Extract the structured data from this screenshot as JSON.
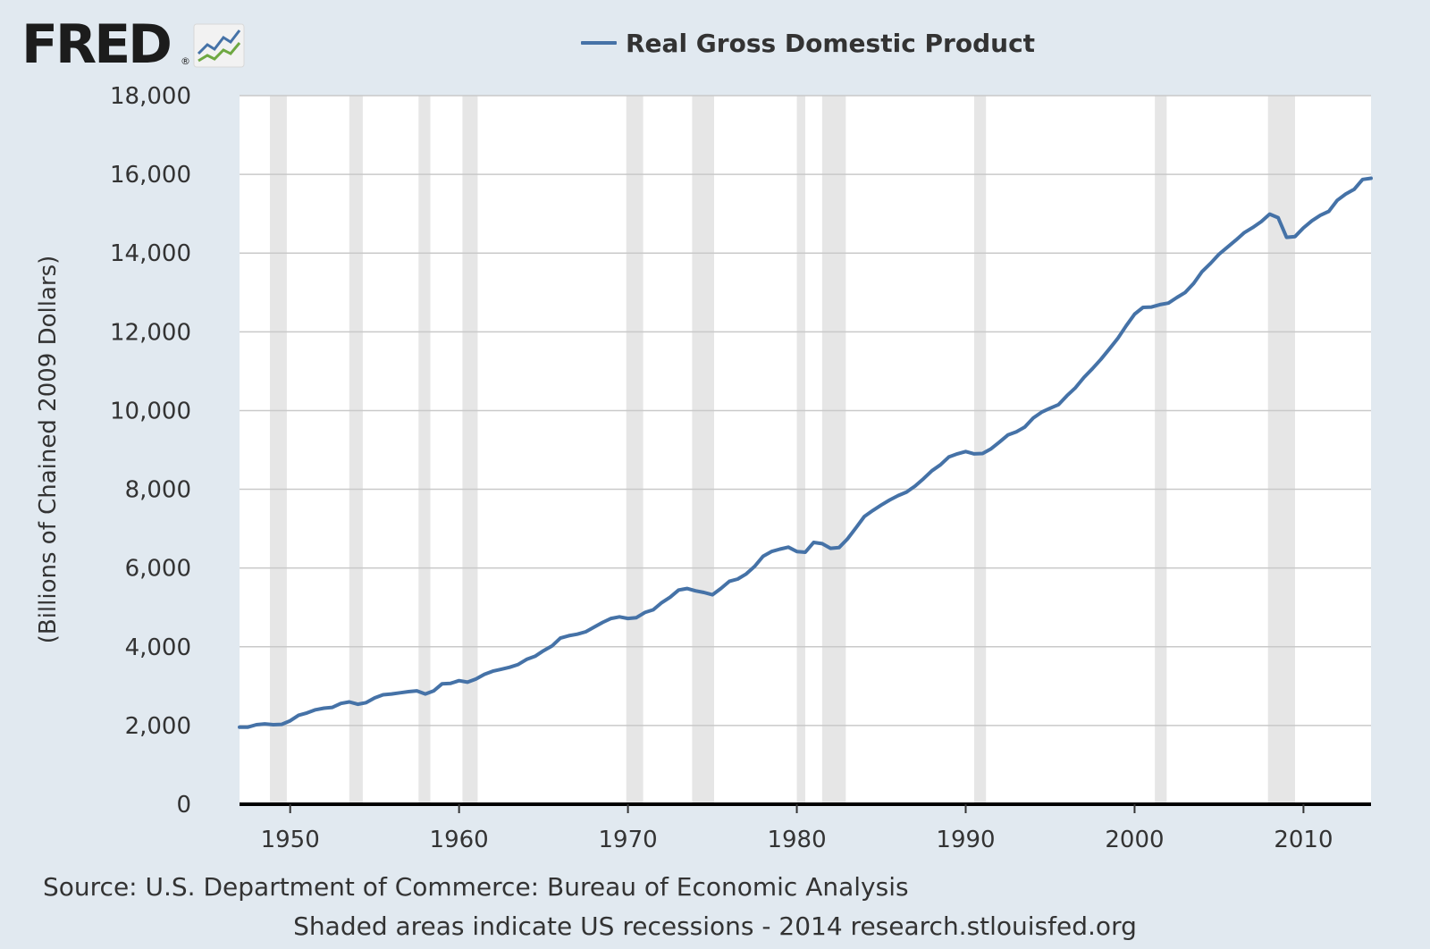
{
  "brand": {
    "name": "FRED",
    "reg": "®"
  },
  "legend": {
    "label": "Real Gross Domestic Product",
    "color": "#4572a7"
  },
  "footer": {
    "source": "Source: U.S. Department of Commerce: Bureau of Economic Analysis",
    "note": "Shaded areas indicate US recessions - 2014 research.stlouisfed.org"
  },
  "chart_data": {
    "type": "line",
    "title": "Real Gross Domestic Product",
    "xlabel": "",
    "ylabel": "(Billions of Chained 2009 Dollars)",
    "xlim": [
      1947.0,
      2014.0
    ],
    "ylim": [
      0,
      18000
    ],
    "yticks": [
      0,
      2000,
      4000,
      6000,
      8000,
      10000,
      12000,
      14000,
      16000,
      18000
    ],
    "ytick_labels": [
      "0",
      "2,000",
      "4,000",
      "6,000",
      "8,000",
      "10,000",
      "12,000",
      "14,000",
      "16,000",
      "18,000"
    ],
    "xticks": [
      1950,
      1960,
      1970,
      1980,
      1990,
      2000,
      2010
    ],
    "xtick_labels": [
      "1950",
      "1960",
      "1970",
      "1980",
      "1990",
      "2000",
      "2010"
    ],
    "grid": true,
    "legend_position": "top-center",
    "colors": {
      "line": "#4572a7",
      "recession": "#e6e6e6",
      "grid": "#c9c9c9",
      "plot_bg": "#ffffff"
    },
    "recessions": [
      [
        1948.8,
        1949.8
      ],
      [
        1953.5,
        1954.3
      ],
      [
        1957.6,
        1958.3
      ],
      [
        1960.2,
        1961.1
      ],
      [
        1969.9,
        1970.9
      ],
      [
        1973.8,
        1975.1
      ],
      [
        1980.0,
        1980.5
      ],
      [
        1981.5,
        1982.9
      ],
      [
        1990.5,
        1991.2
      ],
      [
        2001.2,
        2001.9
      ],
      [
        2007.9,
        2009.5
      ]
    ],
    "series": [
      {
        "name": "Real Gross Domestic Product",
        "x": [
          1947.0,
          1947.5,
          1948.0,
          1948.5,
          1949.0,
          1949.5,
          1950.0,
          1950.5,
          1951.0,
          1951.5,
          1952.0,
          1952.5,
          1953.0,
          1953.5,
          1954.0,
          1954.5,
          1955.0,
          1955.5,
          1956.0,
          1956.5,
          1957.0,
          1957.5,
          1958.0,
          1958.5,
          1959.0,
          1959.5,
          1960.0,
          1960.5,
          1961.0,
          1961.5,
          1962.0,
          1962.5,
          1963.0,
          1963.5,
          1964.0,
          1964.5,
          1965.0,
          1965.5,
          1966.0,
          1966.5,
          1967.0,
          1967.5,
          1968.0,
          1968.5,
          1969.0,
          1969.5,
          1970.0,
          1970.5,
          1971.0,
          1971.5,
          1972.0,
          1972.5,
          1973.0,
          1973.5,
          1974.0,
          1974.5,
          1975.0,
          1975.5,
          1976.0,
          1976.5,
          1977.0,
          1977.5,
          1978.0,
          1978.5,
          1979.0,
          1979.5,
          1980.0,
          1980.5,
          1981.0,
          1981.5,
          1982.0,
          1982.5,
          1983.0,
          1983.5,
          1984.0,
          1984.5,
          1985.0,
          1985.5,
          1986.0,
          1986.5,
          1987.0,
          1987.5,
          1988.0,
          1988.5,
          1989.0,
          1989.5,
          1990.0,
          1990.5,
          1991.0,
          1991.5,
          1992.0,
          1992.5,
          1993.0,
          1993.5,
          1994.0,
          1994.5,
          1995.0,
          1995.5,
          1996.0,
          1996.5,
          1997.0,
          1997.5,
          1998.0,
          1998.5,
          1999.0,
          1999.5,
          2000.0,
          2000.5,
          2001.0,
          2001.5,
          2002.0,
          2002.5,
          2003.0,
          2003.5,
          2004.0,
          2004.5,
          2005.0,
          2005.5,
          2006.0,
          2006.5,
          2007.0,
          2007.5,
          2008.0,
          2008.5,
          2009.0,
          2009.5,
          2010.0,
          2010.5,
          2011.0,
          2011.5,
          2012.0,
          2012.5,
          2013.0,
          2013.5,
          2014.0
        ],
        "values": [
          1960,
          1960,
          2020,
          2040,
          2020,
          2030,
          2120,
          2260,
          2320,
          2400,
          2440,
          2460,
          2560,
          2600,
          2540,
          2580,
          2700,
          2780,
          2800,
          2830,
          2860,
          2880,
          2800,
          2880,
          3060,
          3070,
          3140,
          3100,
          3180,
          3300,
          3380,
          3430,
          3480,
          3550,
          3680,
          3760,
          3900,
          4020,
          4220,
          4280,
          4320,
          4380,
          4500,
          4620,
          4720,
          4760,
          4720,
          4740,
          4870,
          4940,
          5120,
          5260,
          5440,
          5480,
          5420,
          5380,
          5320,
          5480,
          5660,
          5720,
          5850,
          6040,
          6300,
          6420,
          6480,
          6530,
          6420,
          6400,
          6650,
          6620,
          6500,
          6520,
          6740,
          7020,
          7310,
          7460,
          7600,
          7730,
          7840,
          7930,
          8080,
          8270,
          8470,
          8620,
          8820,
          8900,
          8960,
          8900,
          8910,
          9030,
          9200,
          9380,
          9460,
          9580,
          9810,
          9960,
          10060,
          10150,
          10380,
          10580,
          10840,
          11060,
          11300,
          11560,
          11830,
          12150,
          12450,
          12620,
          12630,
          12690,
          12730,
          12870,
          13000,
          13230,
          13530,
          13740,
          13970,
          14150,
          14330,
          14520,
          14650,
          14800,
          14990,
          14900,
          14400,
          14420,
          14640,
          14820,
          14960,
          15060,
          15340,
          15500,
          15620,
          15870,
          15900
        ]
      }
    ]
  }
}
